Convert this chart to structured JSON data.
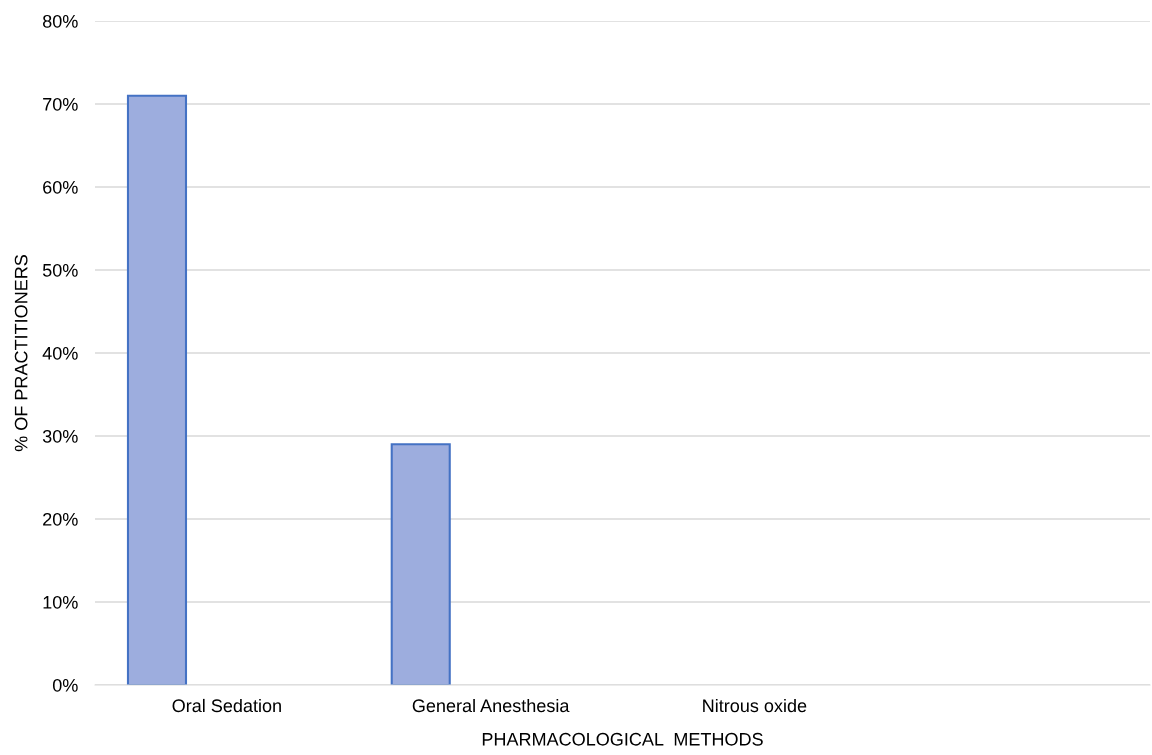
{
  "chart_data": {
    "type": "bar",
    "xlabel": "PHARMACOLOGICAL  METHODS",
    "ylabel": "% OF PRACTITIONERS",
    "categories": [
      "Oral Sedation",
      "General Anesthesia",
      "Nitrous oxide",
      null
    ],
    "series": [
      {
        "color": "#9dadde",
        "values": [
          71,
          29,
          0,
          null
        ]
      }
    ],
    "ylim": [
      0,
      80
    ],
    "yticks": [
      {
        "value": 0,
        "label": "0%"
      },
      {
        "value": 10,
        "label": "10%"
      },
      {
        "value": 20,
        "label": "20%"
      },
      {
        "value": 30,
        "label": "30%"
      },
      {
        "value": 40,
        "label": "40%"
      },
      {
        "value": 50,
        "label": "50%"
      },
      {
        "value": 60,
        "label": "60%"
      },
      {
        "value": 70,
        "label": "70%"
      },
      {
        "value": 80,
        "label": "80%"
      }
    ],
    "grid": "y",
    "legend": false
  }
}
